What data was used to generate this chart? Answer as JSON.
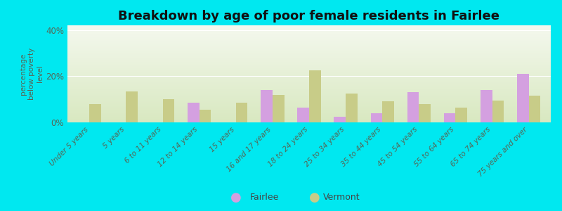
{
  "title": "Breakdown by age of poor female residents in Fairlee",
  "ylabel": "percentage\nbelow poverty\nlevel",
  "categories": [
    "Under 5 years",
    "5 years",
    "6 to 11 years",
    "12 to 14 years",
    "15 years",
    "16 and 17 years",
    "18 to 24 years",
    "25 to 34 years",
    "35 to 44 years",
    "45 to 54 years",
    "55 to 64 years",
    "65 to 74 years",
    "75 years and over"
  ],
  "fairlee": [
    0,
    0,
    0,
    8.5,
    0,
    14.0,
    6.5,
    2.5,
    4.0,
    13.0,
    4.0,
    14.0,
    21.0
  ],
  "vermont": [
    8.0,
    13.5,
    10.0,
    5.5,
    8.5,
    12.0,
    22.5,
    12.5,
    9.0,
    8.0,
    6.5,
    9.5,
    11.5
  ],
  "fairlee_color": "#d4a0e0",
  "vermont_color": "#c8cc88",
  "bg_plot_top": "#d8e8c0",
  "bg_plot_bottom": "#f0f8e8",
  "bg_outer": "#00e8f0",
  "ylim": [
    0,
    42
  ],
  "yticks": [
    0,
    20,
    40
  ],
  "ytick_labels": [
    "0%",
    "20%",
    "40%"
  ],
  "title_fontsize": 13,
  "label_fontsize": 7.5,
  "bar_width": 0.32
}
